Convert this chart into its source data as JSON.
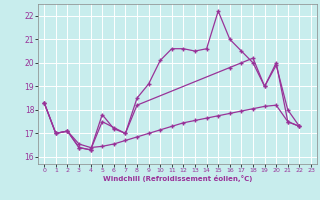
{
  "xlabel": "Windchill (Refroidissement éolien,°C)",
  "xlim": [
    -0.5,
    23.5
  ],
  "ylim": [
    15.7,
    22.5
  ],
  "yticks": [
    16,
    17,
    18,
    19,
    20,
    21,
    22
  ],
  "xticks": [
    0,
    1,
    2,
    3,
    4,
    5,
    6,
    7,
    8,
    9,
    10,
    11,
    12,
    13,
    14,
    15,
    16,
    17,
    18,
    19,
    20,
    21,
    22,
    23
  ],
  "bg_color": "#c8eded",
  "line_color": "#993399",
  "grid_color": "#ffffff",
  "lines": [
    {
      "x": [
        0,
        1,
        2,
        3,
        4,
        5,
        6,
        7,
        8,
        9,
        10,
        11,
        12,
        13,
        14,
        15,
        16,
        17,
        18,
        19,
        20,
        21,
        22
      ],
      "y": [
        18.3,
        17.0,
        17.1,
        16.4,
        16.3,
        17.8,
        17.2,
        17.0,
        18.5,
        19.1,
        20.1,
        20.6,
        20.6,
        20.5,
        20.6,
        22.2,
        21.0,
        20.5,
        20.0,
        19.0,
        20.0,
        17.5,
        17.3
      ]
    },
    {
      "x": [
        0,
        1,
        2,
        3,
        4,
        5,
        6,
        7,
        8,
        16,
        17,
        18,
        19,
        20,
        21,
        22
      ],
      "y": [
        18.3,
        17.0,
        17.1,
        16.4,
        16.3,
        17.5,
        17.25,
        17.0,
        18.2,
        19.8,
        20.0,
        20.2,
        19.0,
        19.9,
        18.0,
        17.3
      ]
    },
    {
      "x": [
        0,
        1,
        2,
        3,
        4,
        5,
        6,
        7,
        8,
        9,
        10,
        11,
        12,
        13,
        14,
        15,
        16,
        17,
        18,
        19,
        20,
        21,
        22
      ],
      "y": [
        18.3,
        17.0,
        17.1,
        16.55,
        16.4,
        16.45,
        16.55,
        16.7,
        16.85,
        17.0,
        17.15,
        17.3,
        17.45,
        17.55,
        17.65,
        17.75,
        17.85,
        17.95,
        18.05,
        18.15,
        18.2,
        17.5,
        17.3
      ]
    }
  ]
}
